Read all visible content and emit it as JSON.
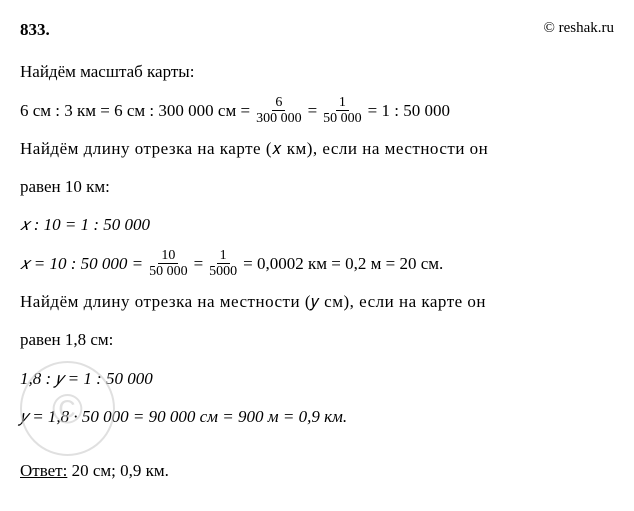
{
  "header": {
    "problem_number": "833.",
    "source": "© reshak.ru"
  },
  "lines": {
    "intro1": "Найдём масштаб карты:",
    "eq1_part1": "6 см : 3 км = 6 см : 300 000 см = ",
    "eq1_frac1_num": "6",
    "eq1_frac1_den": "300 000",
    "eq1_part2": " = ",
    "eq1_frac2_num": "1",
    "eq1_frac2_den": "50 000",
    "eq1_part3": " = 1 : 50 000",
    "intro2": "Найдём длину отрезка на карте (𝑥 км), если на местности он",
    "intro2b": "равен 10 км:",
    "eq2": "𝑥 : 10 = 1 : 50 000",
    "eq3_part1": "𝑥 = 10 : 50 000 = ",
    "eq3_frac1_num": "10",
    "eq3_frac1_den": "50 000",
    "eq3_part2": " = ",
    "eq3_frac2_num": "1",
    "eq3_frac2_den": "5000",
    "eq3_part3": " = 0,0002 км = 0,2 м = 20 см.",
    "intro3": "Найдём длину отрезка на местности (𝑦 см), если на карте он",
    "intro3b": "равен 1,8 см:",
    "eq4": "1,8 : 𝑦 = 1 : 50 000",
    "eq5": "𝑦 = 1,8 · 50 000 = 90 000 см = 900 м = 0,9 км.",
    "answer_label": "Ответ:",
    "answer_value": " 20 см; 0,9 км."
  },
  "watermark": "©",
  "colors": {
    "text": "#000000",
    "background": "#ffffff",
    "watermark": "#cccccc"
  }
}
